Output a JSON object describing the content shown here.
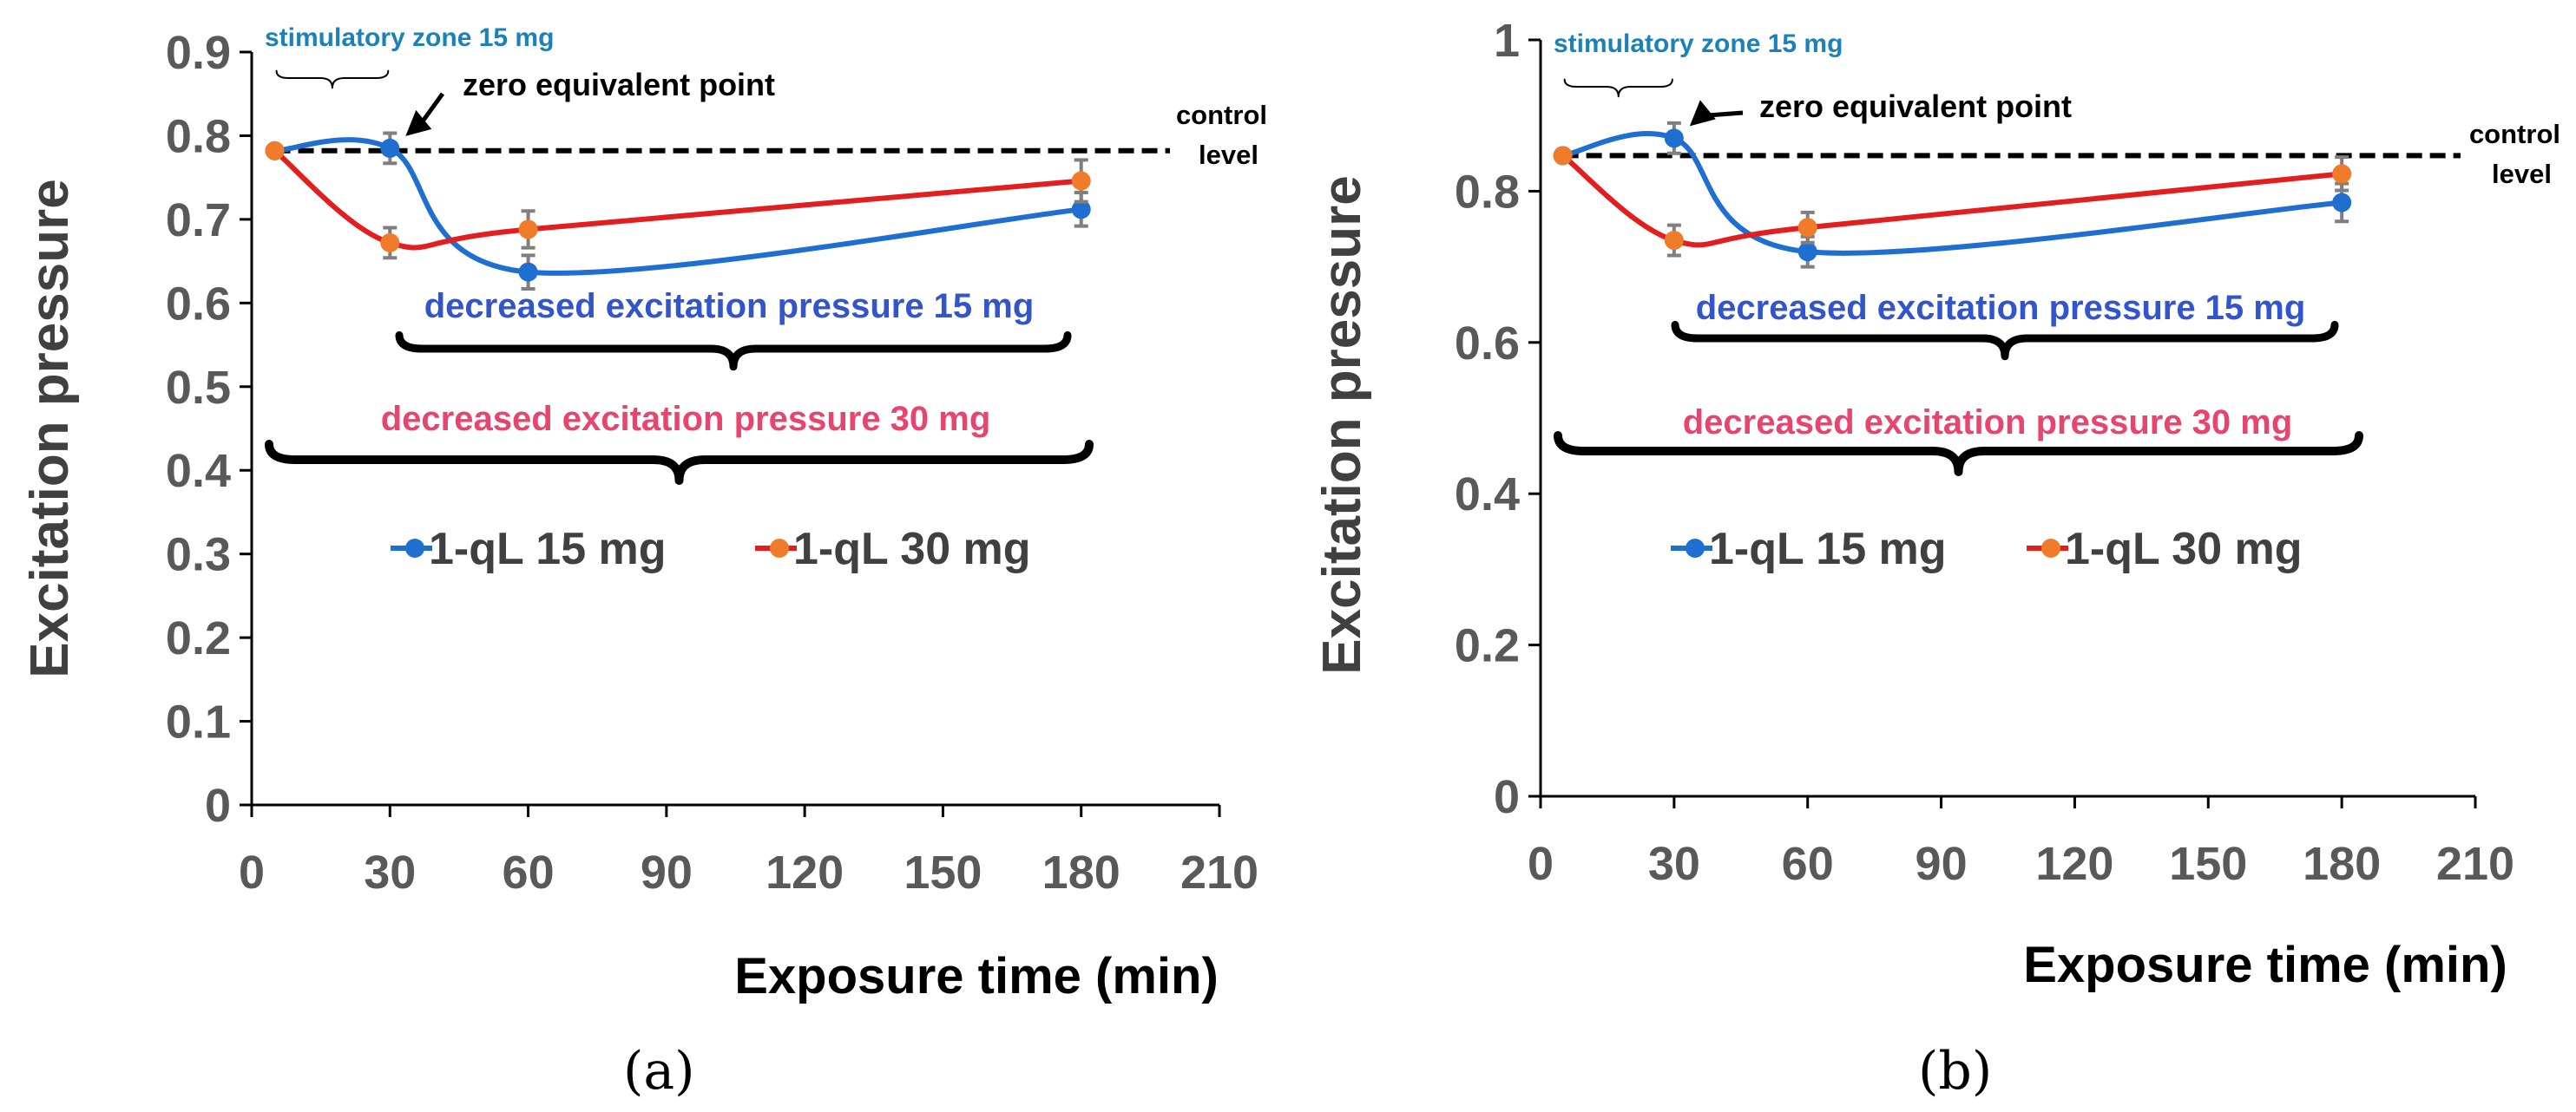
{
  "figure": {
    "panel_labels": [
      "(a)",
      "(b)"
    ]
  },
  "colors": {
    "series_15": "#1f6fd1",
    "series_15_marker": "#1f6fd1",
    "series_30": "#e31e1e",
    "series_30_marker": "#f07b2a",
    "axis_text": "#595959",
    "stim_label": "#1a82b8",
    "dec15_label": "#3355cc",
    "dec30_label": "#e8456e",
    "control_line": "#000000",
    "error_bar": "#7f7f7f"
  },
  "chart_data": [
    {
      "type": "line",
      "panel": "(a)",
      "xlabel": "Exposure time (min)",
      "ylabel": "Excitation pressure",
      "xlim": [
        0,
        210
      ],
      "ylim": [
        0,
        0.9
      ],
      "xticks": [
        0,
        30,
        60,
        90,
        120,
        150,
        180,
        210
      ],
      "xtick_labels": [
        "0",
        "30",
        "60",
        "90",
        "120",
        "150",
        "180",
        "210"
      ],
      "yticks": [
        0,
        0.1,
        0.2,
        0.3,
        0.4,
        0.5,
        0.6,
        0.7,
        0.8,
        0.9
      ],
      "ytick_labels": [
        "0",
        "0.1",
        "0.2",
        "0.3",
        "0.4",
        "0.5",
        "0.6",
        "0.7",
        "0.8",
        "0.9"
      ],
      "x": [
        5,
        30,
        60,
        180
      ],
      "series": [
        {
          "name": "1-qL 15 mg",
          "values": [
            0.782,
            0.785,
            0.637,
            0.712
          ],
          "errors": [
            0.005,
            0.018,
            0.02,
            0.02
          ]
        },
        {
          "name": "1-qL 30 mg",
          "values": [
            0.782,
            0.672,
            0.688,
            0.746
          ],
          "errors": [
            0.005,
            0.018,
            0.022,
            0.025
          ]
        }
      ],
      "control_level": 0.782,
      "control_label": [
        "control",
        "level"
      ],
      "annotations": {
        "stimulatory": "stimulatory zone 15 mg",
        "zero_point": "zero equivalent point",
        "decreased_15": "decreased excitation pressure 15 mg",
        "decreased_30": "decreased excitation pressure 30 mg"
      },
      "legend": [
        "1-qL 15 mg",
        "1-qL 30 mg"
      ]
    },
    {
      "type": "line",
      "panel": "(b)",
      "xlabel": "Exposure time (min)",
      "ylabel": "Excitation pressure",
      "xlim": [
        0,
        210
      ],
      "ylim": [
        0,
        1
      ],
      "xticks": [
        0,
        30,
        60,
        90,
        120,
        150,
        180,
        210
      ],
      "xtick_labels": [
        "0",
        "30",
        "60",
        "90",
        "120",
        "150",
        "180",
        "210"
      ],
      "yticks": [
        0,
        0.2,
        0.4,
        0.6,
        0.8,
        1
      ],
      "ytick_labels": [
        "0",
        "0.2",
        "0.4",
        "0.6",
        "0.8",
        "1"
      ],
      "x": [
        5,
        30,
        60,
        180
      ],
      "series": [
        {
          "name": "1-qL 15 mg",
          "values": [
            0.847,
            0.87,
            0.72,
            0.785
          ],
          "errors": [
            0.005,
            0.02,
            0.02,
            0.025
          ]
        },
        {
          "name": "1-qL 30 mg",
          "values": [
            0.847,
            0.735,
            0.752,
            0.823
          ],
          "errors": [
            0.005,
            0.02,
            0.02,
            0.022
          ]
        }
      ],
      "control_level": 0.847,
      "control_label": [
        "control",
        "level"
      ],
      "annotations": {
        "stimulatory": "stimulatory zone 15 mg",
        "zero_point": "zero equivalent point",
        "decreased_15": "decreased excitation pressure 15 mg",
        "decreased_30": "decreased excitation pressure 30 mg"
      },
      "legend": [
        "1-qL 15 mg",
        "1-qL 30 mg"
      ]
    }
  ]
}
